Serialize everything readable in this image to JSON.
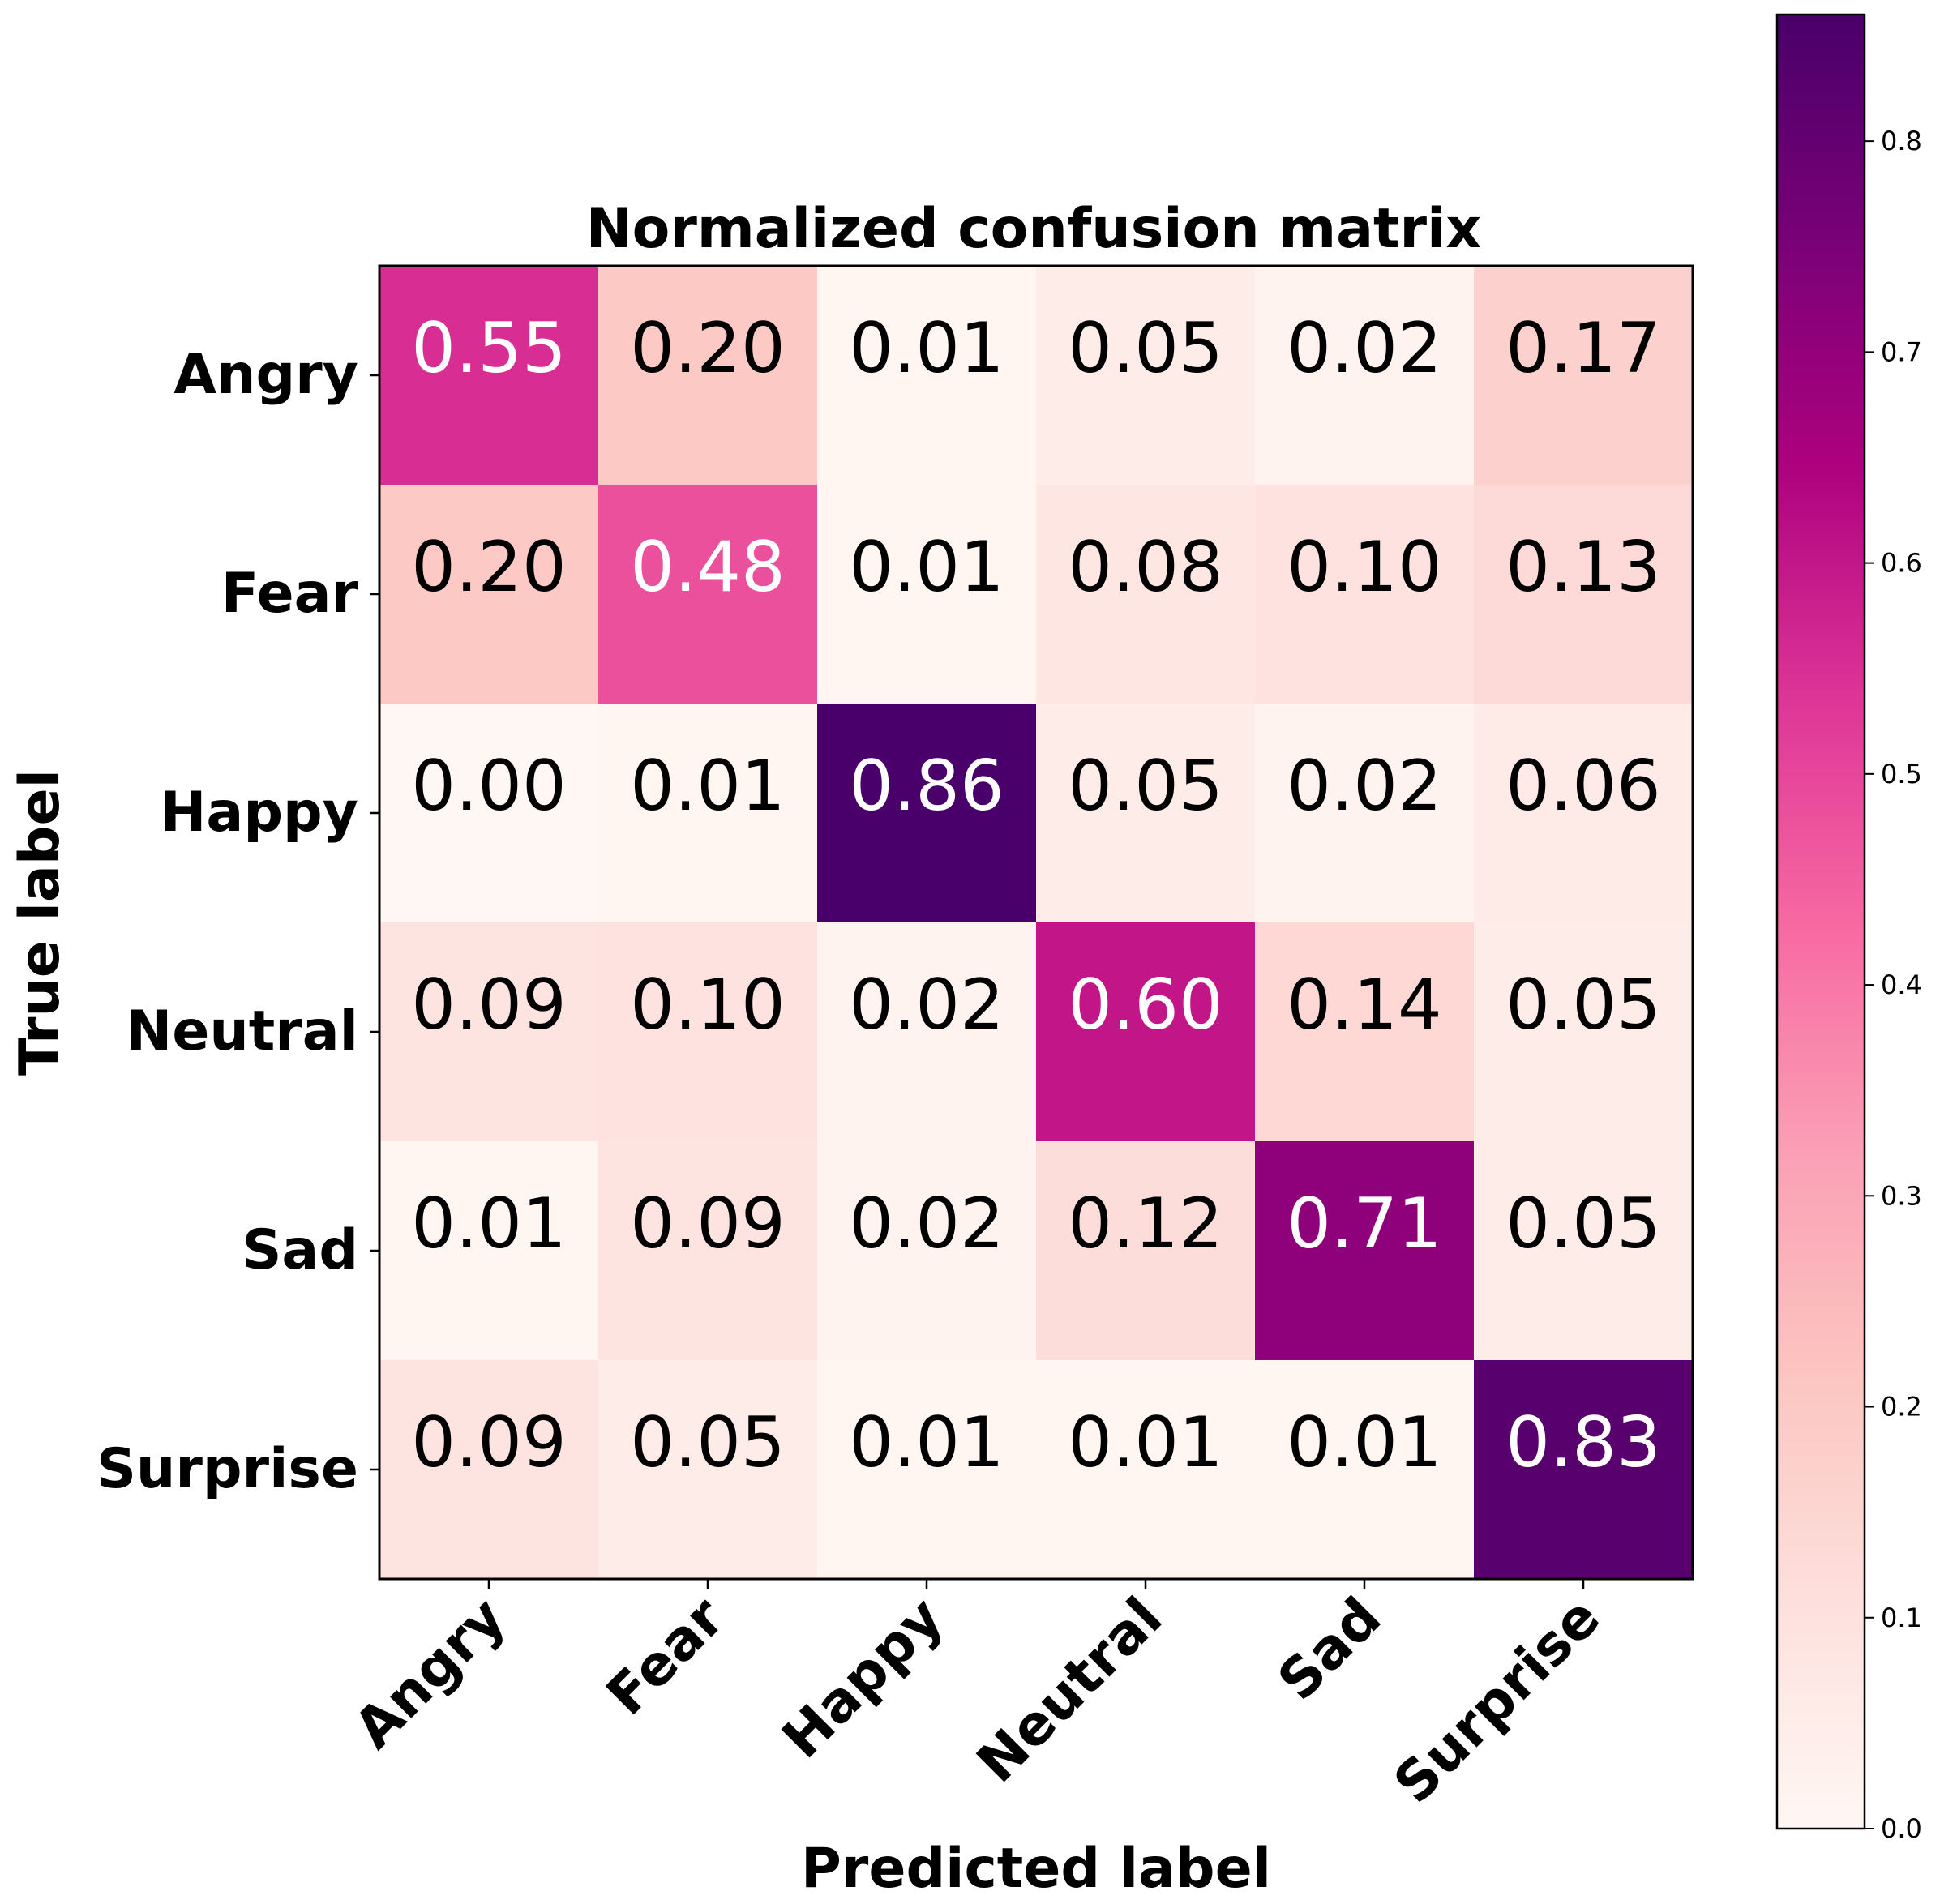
{
  "chart_data": {
    "type": "heatmap",
    "title": "Normalized confusion matrix",
    "xlabel": "Predicted label",
    "ylabel": "True label",
    "x_categories": [
      "Angry",
      "Fear",
      "Happy",
      "Neutral",
      "Sad",
      "Surprise"
    ],
    "y_categories": [
      "Angry",
      "Fear",
      "Happy",
      "Neutral",
      "Sad",
      "Surprise"
    ],
    "values": [
      [
        0.55,
        0.2,
        0.01,
        0.05,
        0.02,
        0.17
      ],
      [
        0.2,
        0.48,
        0.01,
        0.08,
        0.1,
        0.13
      ],
      [
        0.0,
        0.01,
        0.86,
        0.05,
        0.02,
        0.06
      ],
      [
        0.09,
        0.1,
        0.02,
        0.6,
        0.14,
        0.05
      ],
      [
        0.01,
        0.09,
        0.02,
        0.12,
        0.71,
        0.05
      ],
      [
        0.09,
        0.05,
        0.01,
        0.01,
        0.01,
        0.83
      ]
    ],
    "value_labels": [
      [
        "0.55",
        "0.20",
        "0.01",
        "0.05",
        "0.02",
        "0.17"
      ],
      [
        "0.20",
        "0.48",
        "0.01",
        "0.08",
        "0.10",
        "0.13"
      ],
      [
        "0.00",
        "0.01",
        "0.86",
        "0.05",
        "0.02",
        "0.06"
      ],
      [
        "0.09",
        "0.10",
        "0.02",
        "0.60",
        "0.14",
        "0.05"
      ],
      [
        "0.01",
        "0.09",
        "0.02",
        "0.12",
        "0.71",
        "0.05"
      ],
      [
        "0.09",
        "0.05",
        "0.01",
        "0.01",
        "0.01",
        "0.83"
      ]
    ],
    "colormap": "RdPu",
    "colormap_stops": [
      "#fff7f3",
      "#fde0dd",
      "#fcc5c0",
      "#fa9fb5",
      "#f768a1",
      "#dd3497",
      "#ae017e",
      "#7a0177",
      "#49006a"
    ],
    "vmin": 0.0,
    "vmax": 0.86,
    "text_threshold": 0.43,
    "text_color_light": "#ffffff",
    "text_color_dark": "#000000",
    "colorbar": {
      "ticks": [
        0.0,
        0.1,
        0.2,
        0.3,
        0.4,
        0.5,
        0.6,
        0.7,
        0.8
      ],
      "tick_labels": [
        "0.0",
        "0.1",
        "0.2",
        "0.3",
        "0.4",
        "0.5",
        "0.6",
        "0.7",
        "0.8"
      ]
    }
  }
}
